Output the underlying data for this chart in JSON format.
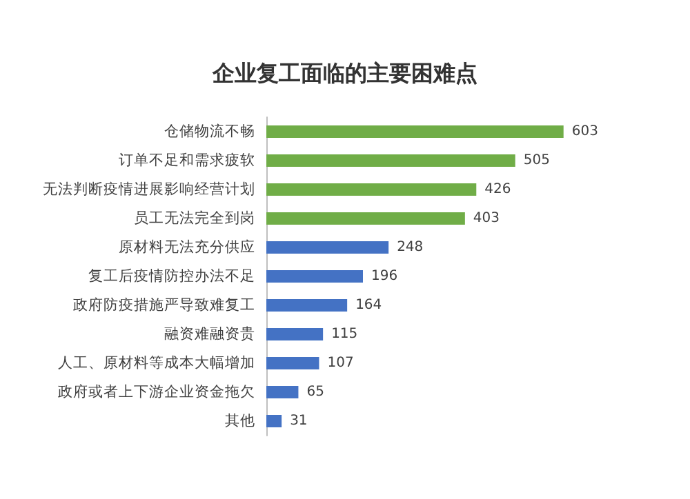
{
  "chart_data": {
    "type": "bar",
    "orientation": "horizontal",
    "title": "企业复工面临的主要困难点",
    "categories": [
      "仓储物流不畅",
      "订单不足和需求疲软",
      "无法判断疫情进展影响经营计划",
      "员工无法完全到岗",
      "原材料无法充分供应",
      "复工后疫情防控办法不足",
      "政府防疫措施严导致难复工",
      "融资难融资贵",
      "人工、原材料等成本大幅增加",
      "政府或者上下游企业资金拖欠",
      "其他"
    ],
    "values": [
      603,
      505,
      426,
      403,
      248,
      196,
      164,
      115,
      107,
      65,
      31
    ],
    "colors": [
      "#70ad47",
      "#70ad47",
      "#70ad47",
      "#70ad47",
      "#4472c4",
      "#4472c4",
      "#4472c4",
      "#4472c4",
      "#4472c4",
      "#4472c4",
      "#4472c4"
    ],
    "data_labels": true
  }
}
